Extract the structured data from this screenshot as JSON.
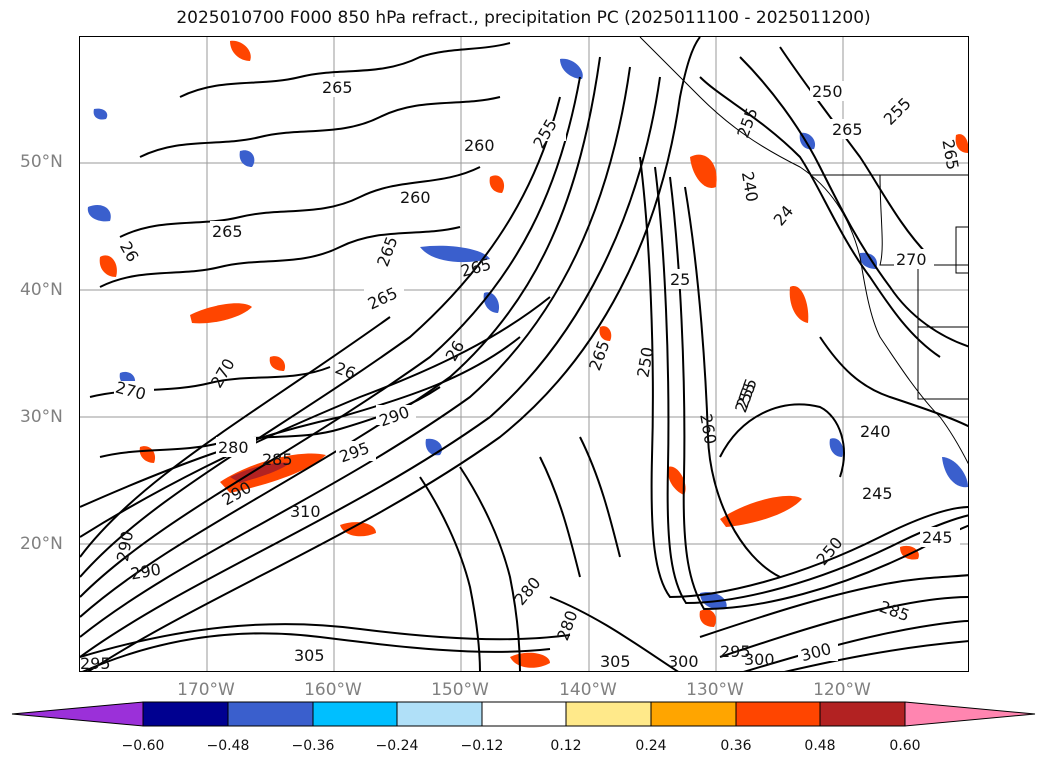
{
  "title": "2025010700 F000 850 hPa refract., precipitation PC (2025011100 - 2025011200)",
  "lat_labels": [
    "50°N",
    "40°N",
    "30°N",
    "20°N"
  ],
  "lon_labels": [
    "170°W",
    "160°W",
    "150°W",
    "140°W",
    "130°W",
    "120°W"
  ],
  "colorbar": {
    "ticks": [
      "−0.60",
      "−0.48",
      "−0.36",
      "−0.24",
      "−0.12",
      "0.12",
      "0.24",
      "0.36",
      "0.48",
      "0.60"
    ],
    "colors": [
      "#9b30d9",
      "#000090",
      "#3a5fcd",
      "#00bfff",
      "#b0e0f8",
      "#ffffff",
      "#ffe98a",
      "#ffa500",
      "#ff4500",
      "#b22222",
      "#ff85b0"
    ]
  },
  "contour_labels": [
    "265",
    "260",
    "255",
    "250",
    "265",
    "255",
    "265",
    "260",
    "265",
    "26",
    "265",
    "265",
    "255",
    "240",
    "24",
    "270",
    "265",
    "25",
    "26",
    "265",
    "255",
    "26",
    "270",
    "270",
    "280",
    "285",
    "290",
    "295",
    "290",
    "260",
    "250",
    "255",
    "240",
    "245",
    "245",
    "250",
    "280",
    "300",
    "305",
    "310",
    "295",
    "300",
    "290",
    "280",
    "285",
    "290",
    "305",
    "300",
    "295"
  ]
}
